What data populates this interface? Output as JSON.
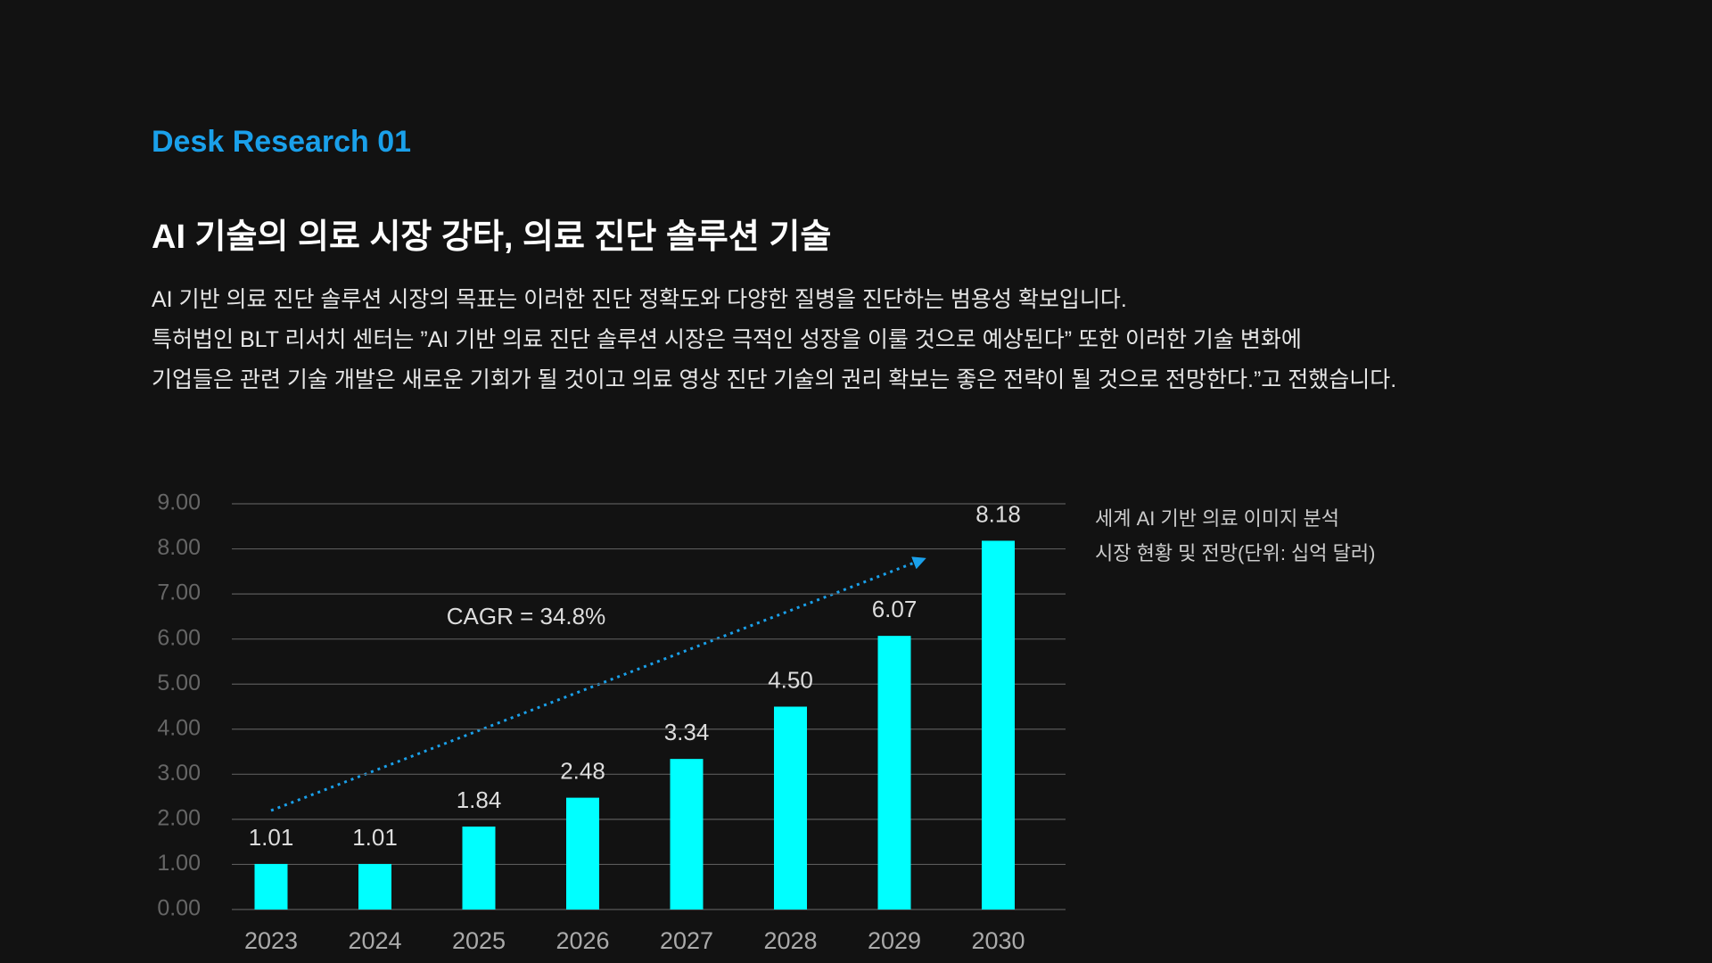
{
  "header": {
    "eyebrow": "Desk Research 01",
    "title": "AI 기술의 의료 시장 강타, 의료 진단 솔루션 기술",
    "paragraphs": [
      "AI 기반 의료 진단 솔루션 시장의 목표는 이러한 진단 정확도와 다양한 질병을 진단하는 범용성 확보입니다.",
      "특허법인 BLT 리서치 센터는 ”AI 기반 의료 진단 솔루션 시장은 극적인 성장을 이룰 것으로 예상된다” 또한 이러한 기술 변화에",
      "기업들은 관련 기술 개발은 새로운 기회가 될 것이고 의료 영상 진단 기술의 권리 확보는 좋은 전략이 될 것으로 전망한다.”고 전했습니다."
    ]
  },
  "chart_data": {
    "type": "bar",
    "note": [
      "세계 AI 기반 의료 이미지 분석",
      "시장 현황 및 전망(단위: 십억 달러)"
    ],
    "annotation": "CAGR = 34.8%",
    "categories": [
      "2023",
      "2024",
      "2025",
      "2026",
      "2027",
      "2028",
      "2029",
      "2030"
    ],
    "values": [
      1.01,
      1.01,
      1.84,
      2.48,
      3.34,
      4.5,
      6.07,
      8.18
    ],
    "value_labels": [
      "1.01",
      "1.01",
      "1.84",
      "2.48",
      "3.34",
      "4.50",
      "6.07",
      "8.18"
    ],
    "color": "#00ffff",
    "ylim": [
      0,
      9
    ],
    "yticks": [
      {
        "value": 0,
        "label": "0.00"
      },
      {
        "value": 1,
        "label": "1.00"
      },
      {
        "value": 2,
        "label": "2.00"
      },
      {
        "value": 3,
        "label": "3.00"
      },
      {
        "value": 4,
        "label": "4.00"
      },
      {
        "value": 5,
        "label": "5.00"
      },
      {
        "value": 6,
        "label": "6.00"
      },
      {
        "value": 7,
        "label": "7.00"
      },
      {
        "value": 8,
        "label": "8.00"
      },
      {
        "value": 9,
        "label": "9.00"
      }
    ],
    "grid": true
  }
}
